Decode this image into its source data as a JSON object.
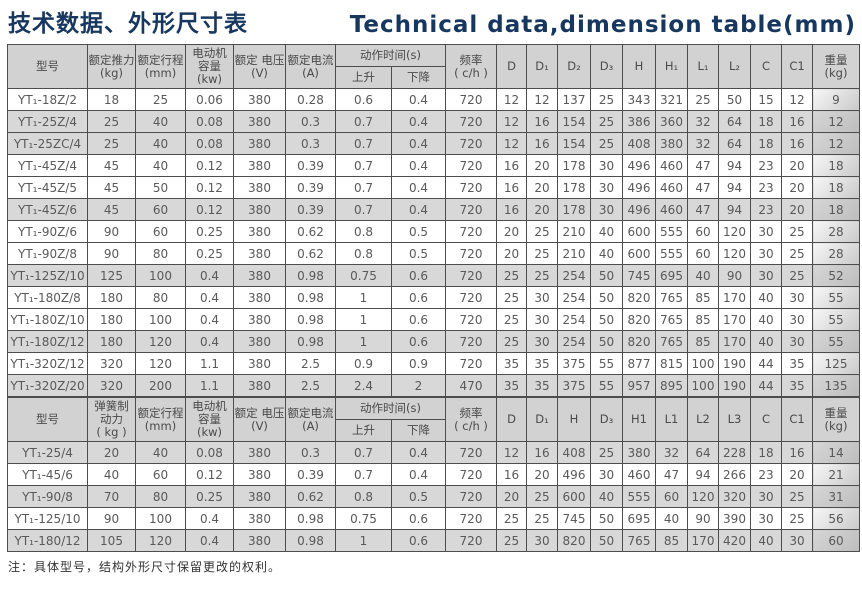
{
  "page": {
    "title_zh": "技术数据、外形尺寸表",
    "title_en": "Technical data,dimension table(mm)",
    "note": "注：具体型号，结构外形尺寸保留更改的权利。"
  },
  "colors": {
    "title": "#17375e",
    "header_bg": "#d2d2d2",
    "row_shaded_bg": "#d8d8d8",
    "border": "#4d4d4d",
    "text": "#595959"
  },
  "tables": [
    {
      "id": "push-type-models",
      "header": {
        "pre": [
          "型号",
          "额定推力\n(kg)",
          "额定行程\n(mm)",
          "电动机\n容量\n(kw)",
          "额定 电压\n(V)",
          "额定电流\n(A)"
        ],
        "group": {
          "label": "动作时间(s)",
          "subs": [
            "上升",
            "下降"
          ]
        },
        "post": [
          "频率\n( c/h )",
          "D",
          "D₁",
          "D₂",
          "D₃",
          "H",
          "H₁",
          "L₁",
          "L₂",
          "C",
          "C1",
          "重量\n(kg)"
        ]
      },
      "rows": [
        {
          "model": "YT₁-18Z/2",
          "values": [
            "18",
            "25",
            "0.06",
            "380",
            "0.28",
            "0.6",
            "0.4",
            "720",
            "12",
            "12",
            "137",
            "25",
            "343",
            "321",
            "25",
            "50",
            "15",
            "12",
            "9"
          ],
          "shaded": false
        },
        {
          "model": "YT₁-25Z/4",
          "values": [
            "25",
            "40",
            "0.08",
            "380",
            "0.3",
            "0.7",
            "0.4",
            "720",
            "12",
            "16",
            "154",
            "25",
            "386",
            "360",
            "32",
            "64",
            "18",
            "16",
            "12"
          ],
          "shaded": true
        },
        {
          "model": "YT₁-25ZC/4",
          "values": [
            "25",
            "40",
            "0.08",
            "380",
            "0.3",
            "0.7",
            "0.4",
            "720",
            "12",
            "16",
            "154",
            "25",
            "408",
            "380",
            "32",
            "64",
            "18",
            "16",
            "12"
          ],
          "shaded": true
        },
        {
          "model": "YT₁-45Z/4",
          "values": [
            "45",
            "40",
            "0.12",
            "380",
            "0.39",
            "0.7",
            "0.4",
            "720",
            "16",
            "20",
            "178",
            "30",
            "496",
            "460",
            "47",
            "94",
            "23",
            "20",
            "18"
          ],
          "shaded": false
        },
        {
          "model": "YT₁-45Z/5",
          "values": [
            "45",
            "50",
            "0.12",
            "380",
            "0.39",
            "0.7",
            "0.4",
            "720",
            "16",
            "20",
            "178",
            "30",
            "496",
            "460",
            "47",
            "94",
            "23",
            "20",
            "18"
          ],
          "shaded": false
        },
        {
          "model": "YT₁-45Z/6",
          "values": [
            "45",
            "60",
            "0.12",
            "380",
            "0.39",
            "0.7",
            "0.4",
            "720",
            "16",
            "20",
            "178",
            "30",
            "496",
            "460",
            "47",
            "94",
            "23",
            "20",
            "18"
          ],
          "shaded": true
        },
        {
          "model": "YT₁-90Z/6",
          "values": [
            "90",
            "60",
            "0.25",
            "380",
            "0.62",
            "0.8",
            "0.5",
            "720",
            "20",
            "25",
            "210",
            "40",
            "600",
            "555",
            "60",
            "120",
            "30",
            "25",
            "28"
          ],
          "shaded": false
        },
        {
          "model": "YT₁-90Z/8",
          "values": [
            "90",
            "80",
            "0.25",
            "380",
            "0.62",
            "0.8",
            "0.5",
            "720",
            "20",
            "25",
            "210",
            "40",
            "600",
            "555",
            "60",
            "120",
            "30",
            "25",
            "28"
          ],
          "shaded": false
        },
        {
          "model": "YT₁-125Z/10",
          "values": [
            "125",
            "100",
            "0.4",
            "380",
            "0.98",
            "0.75",
            "0.6",
            "720",
            "25",
            "25",
            "254",
            "50",
            "745",
            "695",
            "40",
            "90",
            "30",
            "25",
            "52"
          ],
          "shaded": true
        },
        {
          "model": "YT₁-180Z/8",
          "values": [
            "180",
            "80",
            "0.4",
            "380",
            "0.98",
            "1",
            "0.6",
            "720",
            "25",
            "30",
            "254",
            "50",
            "820",
            "765",
            "85",
            "170",
            "40",
            "30",
            "55"
          ],
          "shaded": false
        },
        {
          "model": "YT₁-180Z/10",
          "values": [
            "180",
            "100",
            "0.4",
            "380",
            "0.98",
            "1",
            "0.6",
            "720",
            "25",
            "30",
            "254",
            "50",
            "820",
            "765",
            "85",
            "170",
            "40",
            "30",
            "55"
          ],
          "shaded": false
        },
        {
          "model": "YT₁-180Z/12",
          "values": [
            "180",
            "120",
            "0.4",
            "380",
            "0.98",
            "1",
            "0.6",
            "720",
            "25",
            "30",
            "254",
            "50",
            "820",
            "765",
            "85",
            "170",
            "40",
            "30",
            "55"
          ],
          "shaded": true
        },
        {
          "model": "YT₁-320Z/12",
          "values": [
            "320",
            "120",
            "1.1",
            "380",
            "2.5",
            "0.9",
            "0.9",
            "720",
            "35",
            "35",
            "375",
            "55",
            "877",
            "815",
            "100",
            "190",
            "44",
            "35",
            "125"
          ],
          "shaded": false
        },
        {
          "model": "YT₁-320Z/20",
          "values": [
            "320",
            "200",
            "1.1",
            "380",
            "2.5",
            "2.4",
            "2",
            "470",
            "35",
            "35",
            "375",
            "55",
            "957",
            "895",
            "100",
            "190",
            "44",
            "35",
            "135"
          ],
          "shaded": true
        }
      ]
    },
    {
      "id": "spring-brake-models",
      "header": {
        "pre": [
          "型号",
          "弹簧制\n动力\n( kg )",
          "额定行程\n(mm)",
          "电动机\n容量\n(kw)",
          "额定 电压\n(V)",
          "额定电流\n(A)"
        ],
        "group": {
          "label": "动作时间(s)",
          "subs": [
            "上升",
            "下降"
          ]
        },
        "post": [
          "频率\n( c/h )",
          "D",
          "D₁",
          "H",
          "D₃",
          "H1",
          "L1",
          "L2",
          "L3",
          "C",
          "C1",
          "重量\n(kg)"
        ]
      },
      "rows": [
        {
          "model": "YT₁-25/4",
          "values": [
            "20",
            "40",
            "0.08",
            "380",
            "0.3",
            "0.7",
            "0.4",
            "720",
            "12",
            "16",
            "408",
            "25",
            "380",
            "32",
            "64",
            "228",
            "18",
            "16",
            "14"
          ],
          "shaded": true
        },
        {
          "model": "YT₁-45/6",
          "values": [
            "40",
            "60",
            "0.12",
            "380",
            "0.39",
            "0.7",
            "0.4",
            "720",
            "16",
            "20",
            "496",
            "30",
            "460",
            "47",
            "94",
            "266",
            "23",
            "20",
            "21"
          ],
          "shaded": false
        },
        {
          "model": "YT₁-90/8",
          "values": [
            "70",
            "80",
            "0.25",
            "380",
            "0.62",
            "0.8",
            "0.5",
            "720",
            "20",
            "25",
            "600",
            "40",
            "555",
            "60",
            "120",
            "320",
            "30",
            "25",
            "31"
          ],
          "shaded": true
        },
        {
          "model": "YT₁-125/10",
          "values": [
            "90",
            "100",
            "0.4",
            "380",
            "0.98",
            "0.75",
            "0.6",
            "720",
            "25",
            "25",
            "745",
            "50",
            "695",
            "40",
            "90",
            "390",
            "30",
            "25",
            "56"
          ],
          "shaded": false
        },
        {
          "model": "YT₁-180/12",
          "values": [
            "105",
            "120",
            "0.4",
            "380",
            "0.98",
            "1",
            "0.6",
            "720",
            "25",
            "30",
            "820",
            "50",
            "765",
            "85",
            "170",
            "420",
            "40",
            "30",
            "60"
          ],
          "shaded": true
        }
      ]
    }
  ]
}
